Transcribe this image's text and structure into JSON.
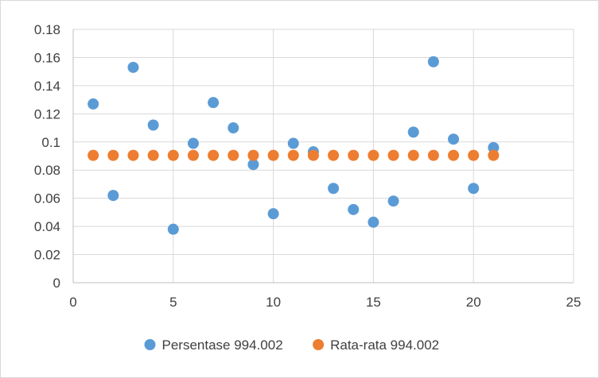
{
  "chart_data": {
    "type": "scatter",
    "title": "",
    "xlabel": "",
    "ylabel": "",
    "xlim": [
      0,
      25
    ],
    "ylim": [
      0,
      0.18
    ],
    "x_ticks": [
      0,
      5,
      10,
      15,
      20,
      25
    ],
    "x_tick_labels": [
      "0",
      "5",
      "10",
      "15",
      "20",
      "25"
    ],
    "y_ticks": [
      0,
      0.02,
      0.04,
      0.06,
      0.08,
      0.1,
      0.12,
      0.14,
      0.16,
      0.18
    ],
    "y_tick_labels": [
      "0",
      "0.02",
      "0.04",
      "0.06",
      "0.08",
      "0.1",
      "0.12",
      "0.14",
      "0.16",
      "0.18"
    ],
    "grid": true,
    "legend_position": "bottom",
    "series": [
      {
        "name": "Persentase 994.002",
        "color": "#5b9bd5",
        "x": [
          1,
          2,
          3,
          4,
          5,
          6,
          7,
          8,
          9,
          10,
          11,
          12,
          13,
          14,
          15,
          16,
          17,
          18,
          19,
          20,
          21
        ],
        "y": [
          0.127,
          0.062,
          0.153,
          0.112,
          0.038,
          0.099,
          0.128,
          0.11,
          0.084,
          0.049,
          0.099,
          0.093,
          0.067,
          0.052,
          0.043,
          0.058,
          0.107,
          0.157,
          0.102,
          0.067,
          0.096
        ]
      },
      {
        "name": "Rata-rata 994.002",
        "color": "#ed7d31",
        "x": [
          1,
          2,
          3,
          4,
          5,
          6,
          7,
          8,
          9,
          10,
          11,
          12,
          13,
          14,
          15,
          16,
          17,
          18,
          19,
          20,
          21
        ],
        "y": [
          0.0905,
          0.0905,
          0.0905,
          0.0905,
          0.0905,
          0.0905,
          0.0905,
          0.0905,
          0.0905,
          0.0905,
          0.0905,
          0.0905,
          0.0905,
          0.0905,
          0.0905,
          0.0905,
          0.0905,
          0.0905,
          0.0905,
          0.0905,
          0.0905
        ]
      }
    ]
  }
}
